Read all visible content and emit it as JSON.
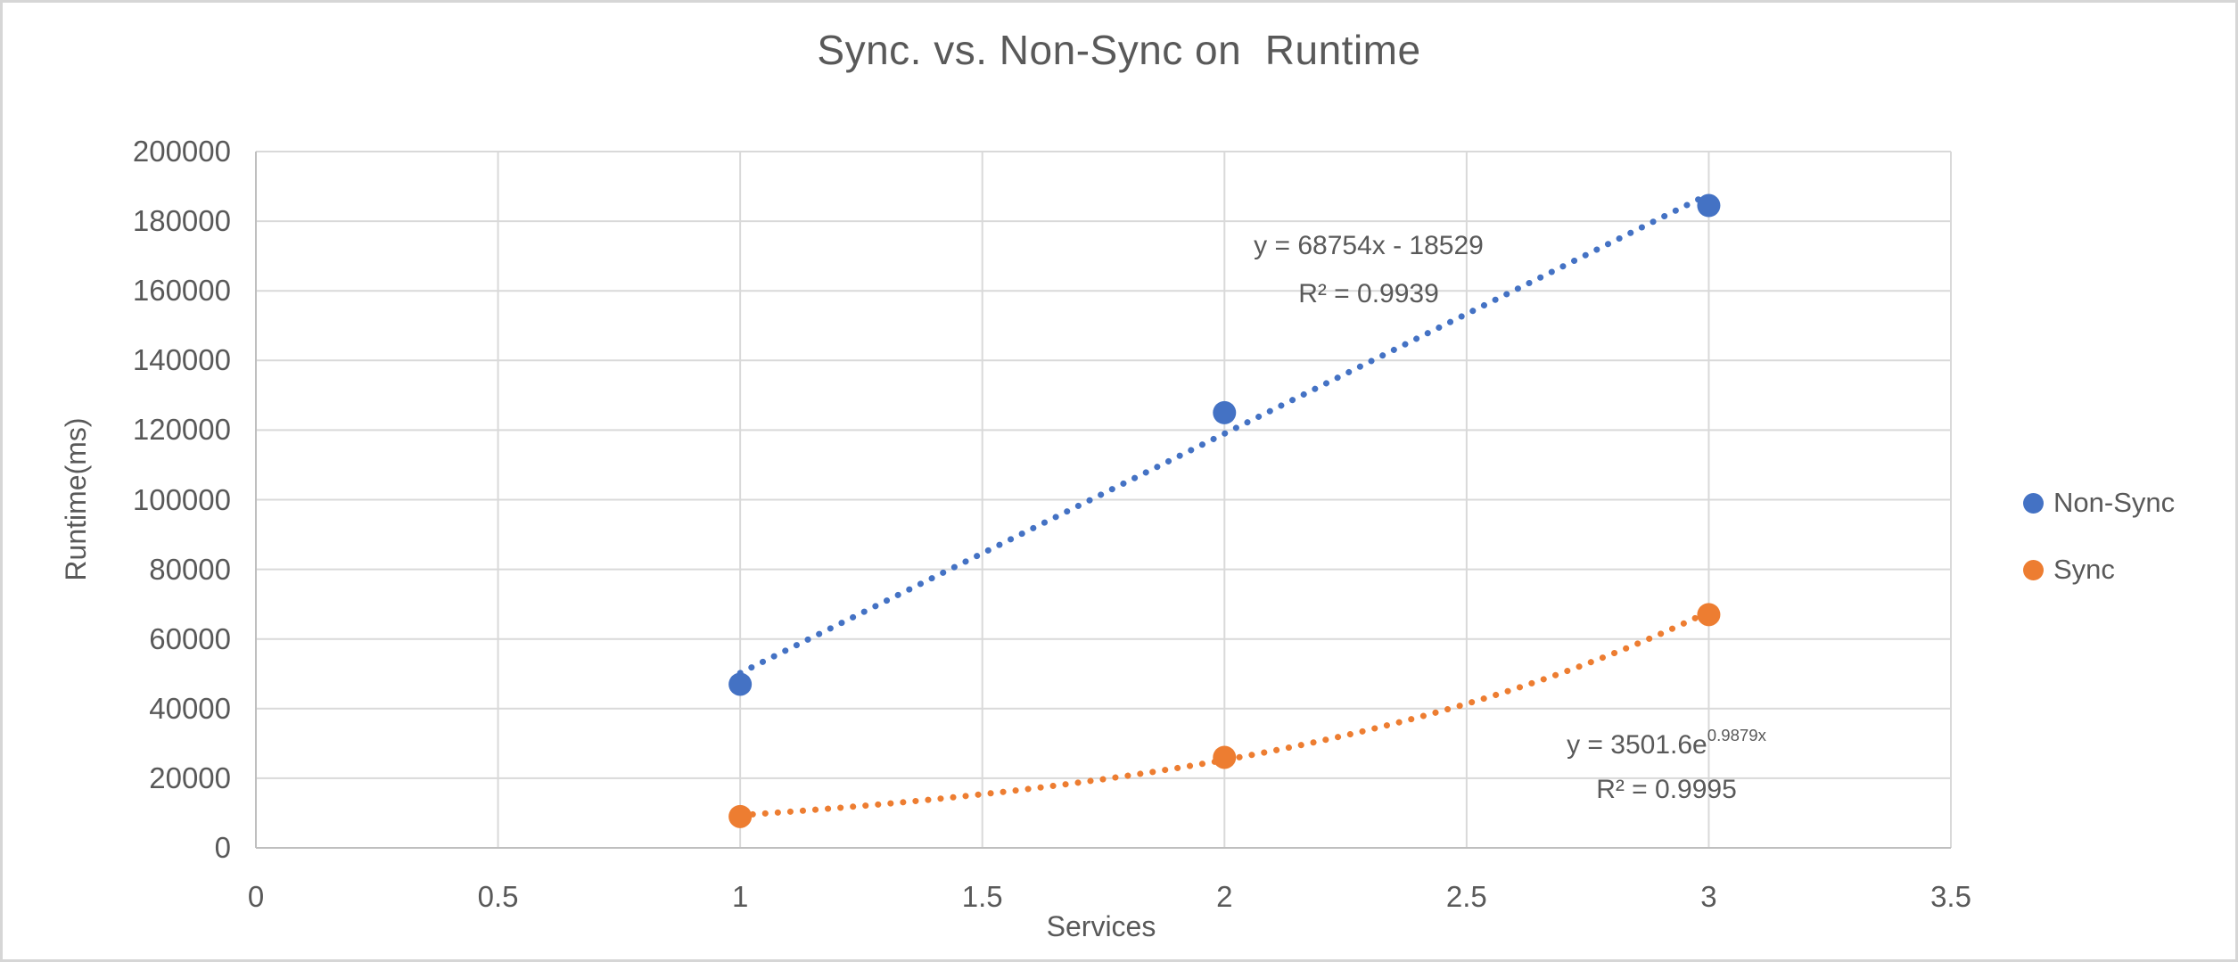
{
  "chart_data": {
    "type": "scatter",
    "title": "Sync. vs. Non-Sync on  Runtime",
    "xlabel": "Services",
    "ylabel": "Runtime(ms)",
    "xlim": [
      0,
      3.5
    ],
    "ylim": [
      0,
      200000
    ],
    "x_ticks": [
      0,
      0.5,
      1,
      1.5,
      2,
      2.5,
      3,
      3.5
    ],
    "x_tick_labels": [
      "0",
      "0.5",
      "1",
      "1.5",
      "2",
      "2.5",
      "3",
      "3.5"
    ],
    "y_ticks": [
      0,
      20000,
      40000,
      60000,
      80000,
      100000,
      120000,
      140000,
      160000,
      180000,
      200000
    ],
    "y_tick_labels": [
      "0",
      "20000",
      "40000",
      "60000",
      "80000",
      "100000",
      "120000",
      "140000",
      "160000",
      "180000",
      "200000"
    ],
    "grid": true,
    "legend_position": "right",
    "series": [
      {
        "name": "Non-Sync",
        "color": "#4472C4",
        "marker": "circle",
        "x": [
          1,
          2,
          3
        ],
        "y": [
          47000,
          125000,
          184500
        ],
        "trendline": {
          "kind": "linear",
          "slope": 68754,
          "intercept": -18529,
          "range": [
            1,
            3
          ],
          "style": "dotted",
          "equation": "y = 68754x - 18529",
          "r_squared_label": "R² = 0.9939"
        }
      },
      {
        "name": "Sync",
        "color": "#ED7D31",
        "marker": "circle",
        "x": [
          1,
          2,
          3
        ],
        "y": [
          9000,
          26000,
          67000
        ],
        "trendline": {
          "kind": "exponential",
          "coefficient": 3501.6,
          "exponent": 0.9879,
          "range": [
            1,
            3
          ],
          "style": "dotted",
          "equation_base": "y = 3501.6e",
          "equation_exponent": "0.9879x",
          "r_squared_label": "R² = 0.9995"
        }
      }
    ],
    "colors": {
      "text": "#595959",
      "gridline": "#D9D9D9",
      "axis_line": "#BFBFBF",
      "background": "#FFFFFF",
      "border": "#D6D6D6"
    }
  }
}
